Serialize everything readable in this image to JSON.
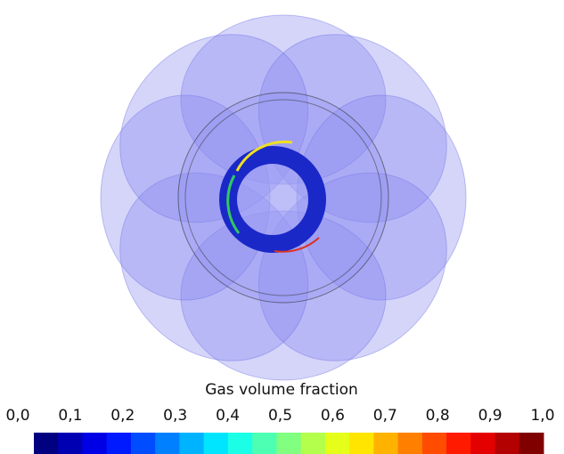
{
  "colorbar": {
    "title": "Gas volume fraction",
    "lim": [
      0,
      1
    ],
    "ticks": [
      {
        "value": 0,
        "label": "0,0"
      },
      {
        "value": 0.1,
        "label": "0,1"
      },
      {
        "value": 0.2,
        "label": "0,2"
      },
      {
        "value": 0.3,
        "label": "0,3"
      },
      {
        "value": 0.4,
        "label": "0,4"
      },
      {
        "value": 0.5,
        "label": "0,5"
      },
      {
        "value": 0.6,
        "label": "0,6"
      },
      {
        "value": 0.7,
        "label": "0,7"
      },
      {
        "value": 0.8,
        "label": "0,8"
      },
      {
        "value": 0.9,
        "label": "0,9"
      },
      {
        "value": 1,
        "label": "1,0"
      }
    ]
  }
}
